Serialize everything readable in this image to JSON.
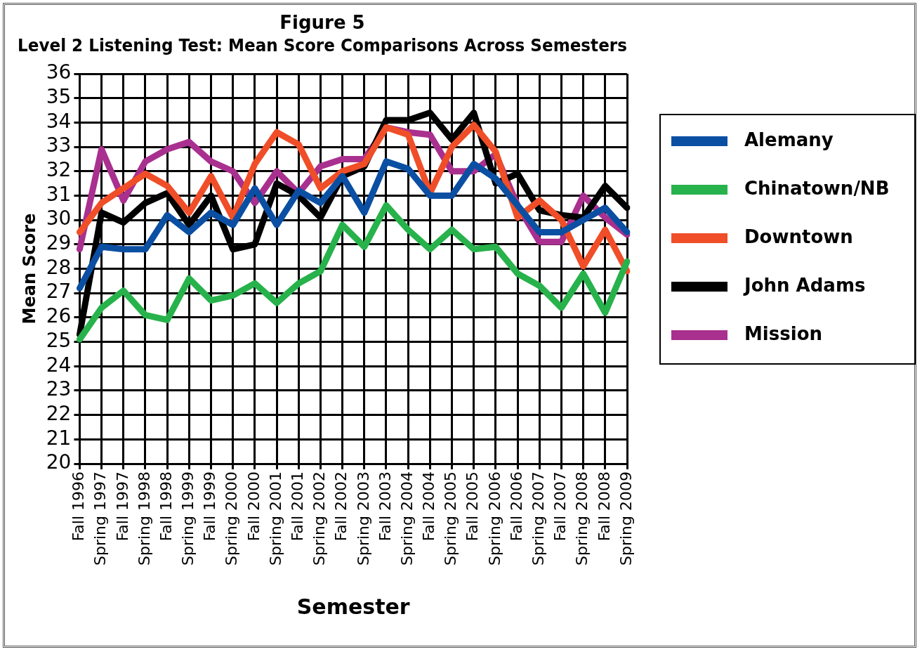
{
  "chart_data": {
    "type": "line",
    "title": "Figure 5",
    "subtitle": "Level 2 Listening Test: Mean Score Comparisons Across Semesters",
    "xlabel": "Semester",
    "ylabel": "Mean Score",
    "categories": [
      "Fall 1996",
      "Spring 1997",
      "Fall 1997",
      "Spring 1998",
      "Fall 1998",
      "Spring 1999",
      "Fall 1999",
      "Spring 2000",
      "Fall 2000",
      "Spring 2001",
      "Fall 2001",
      "Spring 2002",
      "Fall 2002",
      "Spring 2003",
      "Fall 2003",
      "Spring 2004",
      "Fall 2004",
      "Spring 2005",
      "Fall 2005",
      "Spring 2006",
      "Fall 2006",
      "Spring 2007",
      "Fall 2007",
      "Spring 2008",
      "Fall 2008",
      "Spring 2009"
    ],
    "series": [
      {
        "name": "Alemany",
        "color": "#0b4fa3",
        "values": [
          27.2,
          28.9,
          28.8,
          28.8,
          30.2,
          29.5,
          30.3,
          29.8,
          31.3,
          29.8,
          31.2,
          30.7,
          31.8,
          30.3,
          32.4,
          32.1,
          31.0,
          31.0,
          32.3,
          31.7,
          30.6,
          29.5,
          29.5,
          30.0,
          30.5,
          29.5
        ]
      },
      {
        "name": "Chinatown/NB",
        "color": "#27b24b",
        "values": [
          25.1,
          26.4,
          27.1,
          26.1,
          25.9,
          27.6,
          26.7,
          26.9,
          27.4,
          26.6,
          27.4,
          27.9,
          29.8,
          28.9,
          30.6,
          29.6,
          28.8,
          29.6,
          28.8,
          28.9,
          27.8,
          27.3,
          26.4,
          27.8,
          26.2,
          28.3
        ]
      },
      {
        "name": "Downtown",
        "color": "#f04e28",
        "values": [
          29.5,
          30.7,
          31.3,
          31.9,
          31.4,
          30.3,
          31.8,
          30.1,
          32.3,
          33.6,
          33.1,
          31.3,
          32.0,
          32.3,
          33.8,
          33.5,
          31.1,
          33.0,
          33.9,
          32.8,
          30.1,
          30.8,
          30.0,
          28.1,
          29.6,
          27.9
        ]
      },
      {
        "name": "John Adams",
        "color": "#000000",
        "values": [
          25.3,
          30.3,
          29.9,
          30.7,
          31.1,
          29.8,
          31.0,
          28.8,
          29.0,
          31.5,
          31.0,
          30.1,
          31.8,
          32.2,
          34.1,
          34.1,
          34.4,
          33.3,
          34.4,
          31.5,
          31.9,
          30.4,
          30.2,
          30.1,
          31.4,
          30.5
        ]
      },
      {
        "name": "Mission",
        "color": "#a9308f",
        "values": [
          28.8,
          32.9,
          30.8,
          32.4,
          32.9,
          33.2,
          32.4,
          32.0,
          30.7,
          32.0,
          31.1,
          32.2,
          32.5,
          32.5,
          33.8,
          33.6,
          33.5,
          32.0,
          32.0,
          32.7,
          30.6,
          29.1,
          29.1,
          31.0,
          30.1,
          29.4
        ]
      }
    ],
    "ylim": [
      20,
      36
    ],
    "yticks": [
      20,
      21,
      22,
      23,
      24,
      25,
      26,
      27,
      28,
      29,
      30,
      31,
      32,
      33,
      34,
      35,
      36
    ],
    "grid": true,
    "legend": "right",
    "marker": "none",
    "line_style": "solid"
  }
}
